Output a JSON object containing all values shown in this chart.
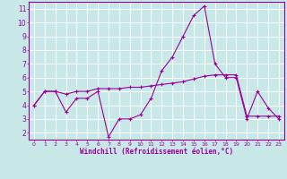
{
  "zigzag_x": [
    0,
    1,
    2,
    3,
    4,
    5,
    6,
    7,
    8,
    9,
    10,
    11,
    12,
    13,
    14,
    15,
    16,
    17,
    18,
    19,
    20,
    21,
    22,
    23
  ],
  "zigzag_y": [
    4.0,
    5.0,
    5.0,
    3.5,
    4.5,
    4.5,
    5.0,
    1.7,
    3.0,
    3.0,
    3.3,
    4.5,
    6.5,
    7.5,
    9.0,
    10.5,
    11.2,
    7.0,
    6.0,
    6.0,
    3.0,
    5.0,
    3.8,
    3.0
  ],
  "trend_x": [
    0,
    1,
    2,
    3,
    4,
    5,
    6,
    7,
    8,
    9,
    10,
    11,
    12,
    13,
    14,
    15,
    16,
    17,
    18,
    19,
    20,
    21,
    22,
    23
  ],
  "trend_y": [
    4.0,
    5.0,
    5.0,
    4.8,
    5.0,
    5.0,
    5.2,
    5.2,
    5.2,
    5.3,
    5.3,
    5.4,
    5.5,
    5.6,
    5.7,
    5.9,
    6.1,
    6.2,
    6.2,
    6.2,
    3.2,
    3.2,
    3.2,
    3.2
  ],
  "line_color": "#990099",
  "bg_color": "#c8e8e8",
  "grid_color": "#ffffff",
  "xlabel": "Windchill (Refroidissement éolien,°C)",
  "ylim": [
    1.5,
    11.5
  ],
  "xlim": [
    -0.5,
    23.5
  ],
  "yticks": [
    2,
    3,
    4,
    5,
    6,
    7,
    8,
    9,
    10,
    11
  ],
  "xticks": [
    0,
    1,
    2,
    3,
    4,
    5,
    6,
    7,
    8,
    9,
    10,
    11,
    12,
    13,
    14,
    15,
    16,
    17,
    18,
    19,
    20,
    21,
    22,
    23
  ]
}
